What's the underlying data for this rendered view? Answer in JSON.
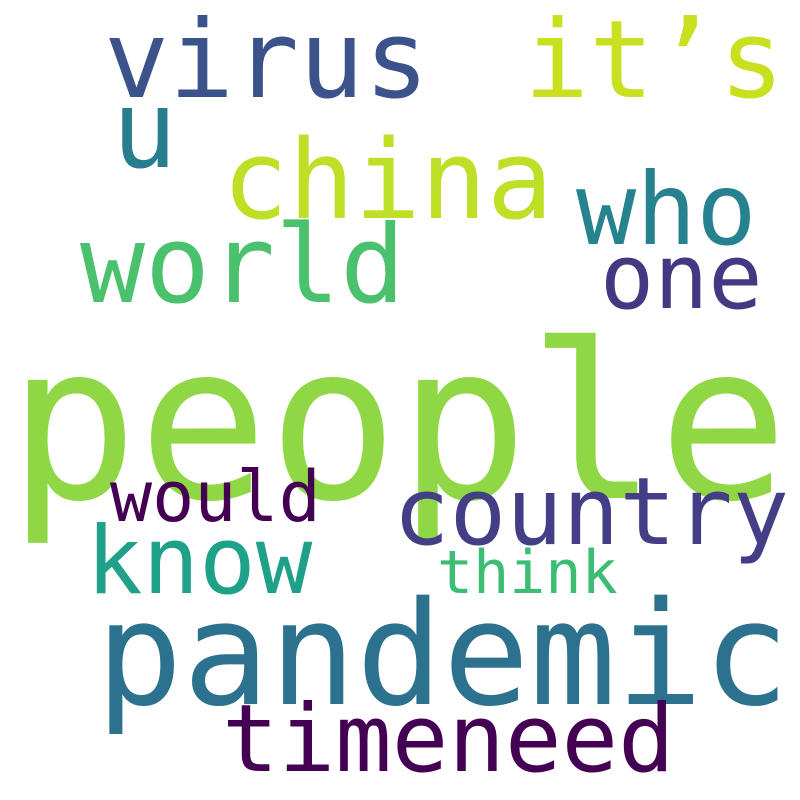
{
  "words": [
    {
      "text": "people",
      "color": "#8fd744"
    },
    {
      "text": "pandemic",
      "color": "#2c728e"
    },
    {
      "text": "china",
      "color": "#bddf26"
    },
    {
      "text": "virus",
      "color": "#3b528b"
    },
    {
      "text": "it’s",
      "color": "#c8e020"
    },
    {
      "text": "world",
      "color": "#4ac16d"
    },
    {
      "text": "who",
      "color": "#26828e"
    },
    {
      "text": "country",
      "color": "#433e85"
    },
    {
      "text": "know",
      "color": "#1fa088"
    },
    {
      "text": "one",
      "color": "#453781"
    },
    {
      "text": "timeneed",
      "color": "#440154"
    },
    {
      "text": "would",
      "color": "#440154"
    },
    {
      "text": "u",
      "color": "#287d8e"
    },
    {
      "text": "think",
      "color": "#3dbc74"
    }
  ]
}
